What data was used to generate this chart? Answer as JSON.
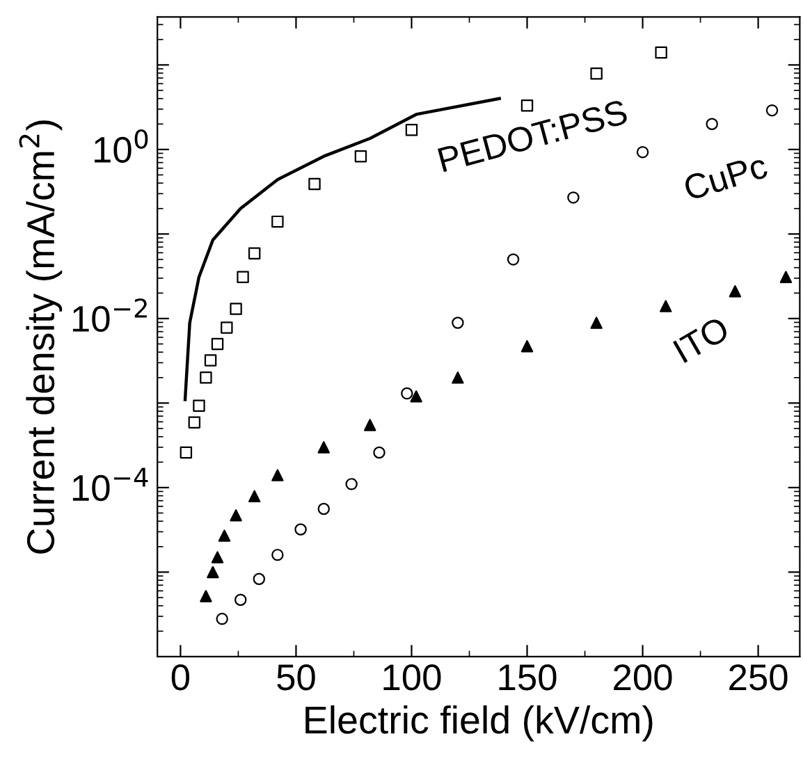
{
  "chart_data": {
    "type": "scatter",
    "xlabel": "Electric field (kV/cm)",
    "ylabel": "Current density (mA/cm$^{2}$)",
    "log": "y",
    "xlim": [
      -10,
      268
    ],
    "xticks": [
      0,
      50,
      100,
      150,
      200,
      250
    ],
    "ylim": [
      1e-06,
      37
    ],
    "yticks": [
      {
        "value": 10,
        "label": null
      },
      {
        "value": 1,
        "label": "10$^{0}$"
      },
      {
        "value": 0.1,
        "label": null
      },
      {
        "value": 0.01,
        "label": "10$^{−2}$"
      },
      {
        "value": 0.001,
        "label": null
      },
      {
        "value": 0.0001,
        "label": "10$^{−4}$"
      },
      {
        "value": 1e-05,
        "label": null
      }
    ],
    "grid": false,
    "legend": "right",
    "series": [
      {
        "type": "line",
        "color": "#000000",
        "marker": "none",
        "line_style": "solid",
        "x": [
          2,
          4,
          8,
          14,
          26,
          42,
          62,
          82,
          102,
          138
        ],
        "values": [
          0.0011,
          0.0089,
          0.031,
          0.085,
          0.2,
          0.44,
          0.83,
          1.35,
          2.6,
          4.0
        ]
      },
      {
        "name": "PEDOT:PSS",
        "color": "#000000",
        "marker": "square",
        "x": [
          2.4,
          6,
          8,
          11,
          13,
          16,
          20,
          24,
          27,
          32,
          42,
          58,
          78,
          100,
          150,
          180,
          208
        ],
        "values": [
          0.00026,
          0.00059,
          0.00093,
          0.002,
          0.0032,
          0.005,
          0.0078,
          0.013,
          0.031,
          0.059,
          0.14,
          0.39,
          0.83,
          1.7,
          3.3,
          7.9,
          14
        ]
      },
      {
        "name": "CuPc",
        "color": "#000000",
        "marker": "circle",
        "x": [
          18,
          26,
          34,
          42,
          52,
          62,
          74,
          86,
          98,
          120,
          144,
          170,
          200,
          230,
          256
        ],
        "values": [
          2.8e-06,
          4.7e-06,
          8.3e-06,
          1.6e-05,
          3.2e-05,
          5.6e-05,
          0.00011,
          0.00026,
          0.0013,
          0.0089,
          0.05,
          0.27,
          0.93,
          2.0,
          2.9
        ]
      },
      {
        "name": "ITO",
        "color": "#000000",
        "marker": "triangle",
        "x": [
          11,
          14,
          16,
          19,
          24,
          32,
          42,
          62,
          82,
          102,
          120,
          150,
          180,
          210,
          240,
          262
        ],
        "values": [
          5.2e-06,
          1e-05,
          1.5e-05,
          2.7e-05,
          4.7e-05,
          7.9e-05,
          0.00014,
          0.0003,
          0.00055,
          0.0012,
          0.002,
          0.0047,
          0.0089,
          0.014,
          0.021,
          0.031
        ]
      }
    ]
  }
}
